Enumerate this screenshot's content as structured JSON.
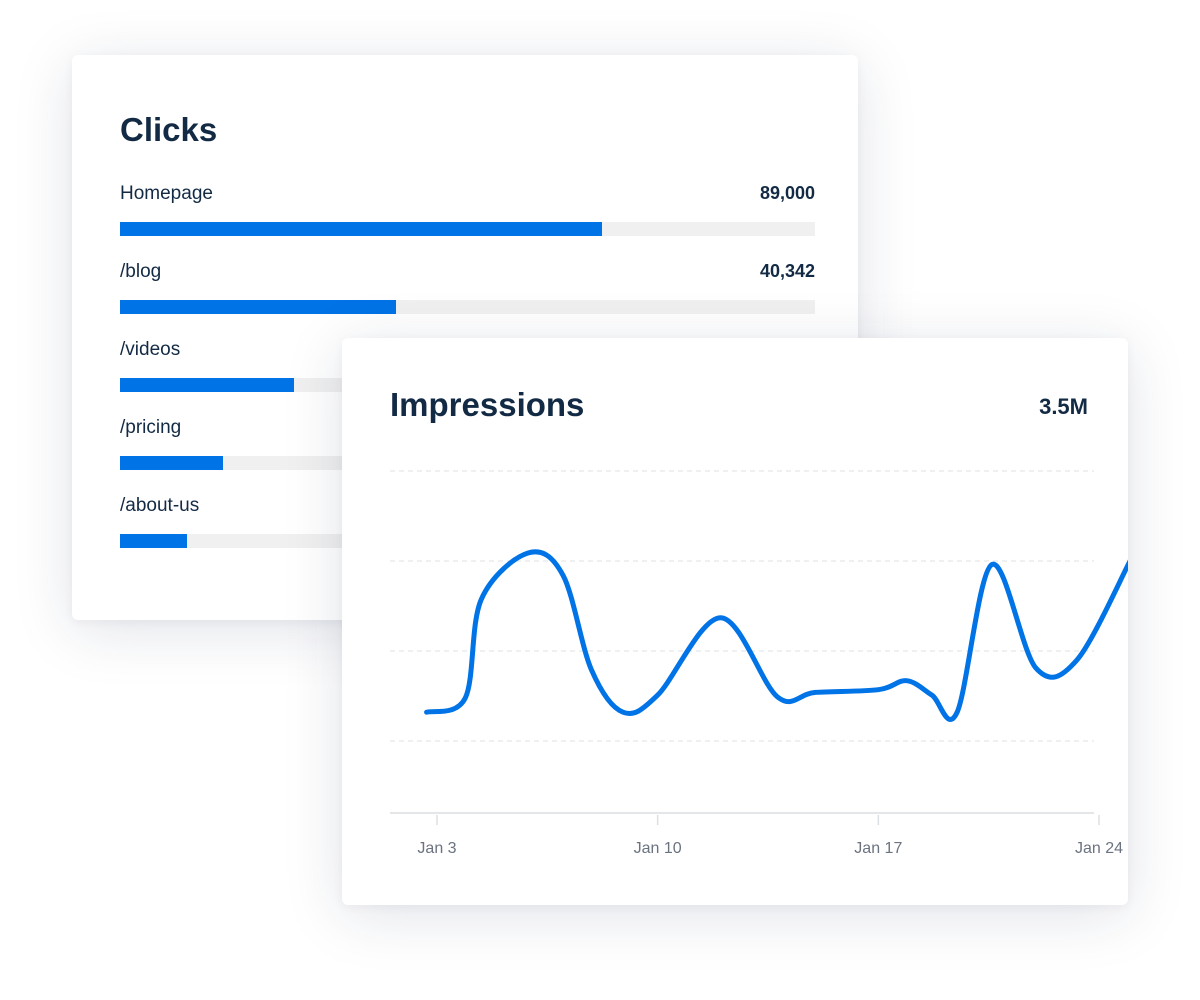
{
  "colors": {
    "accent": "#0073e6",
    "track": "#f0f0f0",
    "text": "#132a44"
  },
  "clicks": {
    "title": "Clicks",
    "rows": [
      {
        "label": "Homepage",
        "value": "89,000",
        "fill": 0.694
      },
      {
        "label": "/blog",
        "value": "40,342",
        "fill": 0.397
      },
      {
        "label": "/videos",
        "value": "",
        "fill": 0.25
      },
      {
        "label": "/pricing",
        "value": "",
        "fill": 0.148
      },
      {
        "label": "/about-us",
        "value": "",
        "fill": 0.096
      }
    ]
  },
  "impressions": {
    "title": "Impressions",
    "total": "3.5M"
  },
  "chart_data": [
    {
      "type": "bar",
      "title": "Clicks",
      "orientation": "horizontal",
      "categories": [
        "Homepage",
        "/blog",
        "/videos",
        "/pricing",
        "/about-us"
      ],
      "values_shown": [
        "89,000",
        "40,342",
        "",
        "",
        ""
      ],
      "fill_fraction": [
        0.694,
        0.397,
        0.25,
        0.148,
        0.096
      ]
    },
    {
      "type": "line",
      "title": "Impressions",
      "total": "3.5M",
      "x_ticks": [
        {
          "day": 3,
          "label": "Jan 3"
        },
        {
          "day": 10,
          "label": "Jan 10"
        },
        {
          "day": 17,
          "label": "Jan 17"
        },
        {
          "day": 24,
          "label": "Jan 24"
        }
      ],
      "xlim": [
        0.7,
        27
      ],
      "ylim": [
        0.2,
        4.2
      ],
      "gridlines": [
        1,
        2,
        3,
        4
      ],
      "grid": true,
      "y_labels_shown": false,
      "series": [
        {
          "x": [
            2.67,
            3.9,
            4.4,
            5.9,
            7.0,
            7.9,
            8.9,
            10.0,
            12.0,
            13.8,
            15.0,
            17.0,
            17.9,
            18.7,
            19.5,
            20.6,
            22.0,
            23.3,
            25.0
          ],
          "y": [
            1.32,
            1.48,
            2.57,
            3.09,
            2.84,
            1.79,
            1.32,
            1.51,
            2.37,
            1.49,
            1.54,
            1.57,
            1.67,
            1.51,
            1.32,
            2.96,
            1.81,
            1.9,
            3.01
          ]
        }
      ]
    }
  ]
}
